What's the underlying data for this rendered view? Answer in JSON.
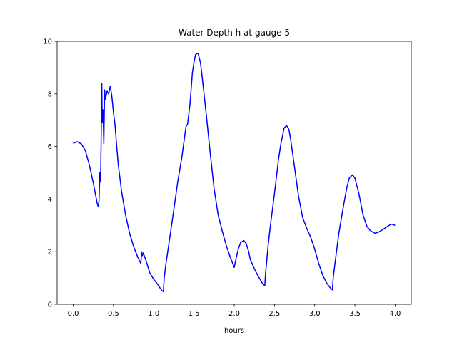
{
  "chart_data": {
    "type": "line",
    "title": "Water Depth h at gauge 5",
    "xlabel": "hours",
    "ylabel": "",
    "xlim": [
      -0.2,
      4.2
    ],
    "ylim": [
      0,
      10
    ],
    "xticks": [
      0.0,
      0.5,
      1.0,
      1.5,
      2.0,
      2.5,
      3.0,
      3.5,
      4.0
    ],
    "xtick_labels": [
      "0.0",
      "0.5",
      "1.0",
      "1.5",
      "2.0",
      "2.5",
      "3.0",
      "3.5",
      "4.0"
    ],
    "yticks": [
      0,
      2,
      4,
      6,
      8,
      10
    ],
    "ytick_labels": [
      "0",
      "2",
      "4",
      "6",
      "8",
      "10"
    ],
    "grid": false,
    "line_color": "#0000ff",
    "series": [
      {
        "points": [
          [
            0.0,
            6.12
          ],
          [
            0.05,
            6.18
          ],
          [
            0.1,
            6.1
          ],
          [
            0.15,
            5.85
          ],
          [
            0.2,
            5.3
          ],
          [
            0.25,
            4.6
          ],
          [
            0.3,
            3.8
          ],
          [
            0.31,
            3.72
          ],
          [
            0.32,
            3.9
          ],
          [
            0.33,
            5.0
          ],
          [
            0.34,
            4.65
          ],
          [
            0.35,
            7.05
          ],
          [
            0.355,
            8.4
          ],
          [
            0.36,
            6.9
          ],
          [
            0.37,
            7.4
          ],
          [
            0.38,
            6.1
          ],
          [
            0.39,
            8.15
          ],
          [
            0.4,
            7.8
          ],
          [
            0.42,
            8.1
          ],
          [
            0.44,
            8.0
          ],
          [
            0.46,
            8.3
          ],
          [
            0.48,
            7.9
          ],
          [
            0.5,
            7.3
          ],
          [
            0.52,
            6.8
          ],
          [
            0.54,
            6.0
          ],
          [
            0.56,
            5.3
          ],
          [
            0.6,
            4.3
          ],
          [
            0.65,
            3.4
          ],
          [
            0.7,
            2.7
          ],
          [
            0.75,
            2.2
          ],
          [
            0.8,
            1.8
          ],
          [
            0.84,
            1.55
          ],
          [
            0.85,
            2.0
          ],
          [
            0.86,
            1.85
          ],
          [
            0.87,
            1.95
          ],
          [
            0.9,
            1.7
          ],
          [
            0.95,
            1.2
          ],
          [
            1.0,
            0.95
          ],
          [
            1.05,
            0.75
          ],
          [
            1.1,
            0.52
          ],
          [
            1.12,
            0.48
          ],
          [
            1.13,
            1.0
          ],
          [
            1.15,
            1.5
          ],
          [
            1.2,
            2.55
          ],
          [
            1.25,
            3.6
          ],
          [
            1.3,
            4.7
          ],
          [
            1.35,
            5.6
          ],
          [
            1.4,
            6.75
          ],
          [
            1.42,
            6.85
          ],
          [
            1.45,
            7.6
          ],
          [
            1.48,
            8.8
          ],
          [
            1.5,
            9.2
          ],
          [
            1.52,
            9.5
          ],
          [
            1.55,
            9.55
          ],
          [
            1.58,
            9.2
          ],
          [
            1.6,
            8.7
          ],
          [
            1.65,
            7.3
          ],
          [
            1.7,
            5.8
          ],
          [
            1.75,
            4.4
          ],
          [
            1.8,
            3.4
          ],
          [
            1.85,
            2.8
          ],
          [
            1.9,
            2.25
          ],
          [
            1.95,
            1.8
          ],
          [
            2.0,
            1.4
          ],
          [
            2.02,
            1.7
          ],
          [
            2.05,
            2.1
          ],
          [
            2.08,
            2.35
          ],
          [
            2.12,
            2.42
          ],
          [
            2.15,
            2.3
          ],
          [
            2.18,
            2.0
          ],
          [
            2.2,
            1.7
          ],
          [
            2.25,
            1.35
          ],
          [
            2.3,
            1.05
          ],
          [
            2.35,
            0.8
          ],
          [
            2.38,
            0.7
          ],
          [
            2.39,
            1.2
          ],
          [
            2.4,
            1.5
          ],
          [
            2.42,
            2.2
          ],
          [
            2.45,
            3.0
          ],
          [
            2.5,
            4.2
          ],
          [
            2.55,
            5.5
          ],
          [
            2.58,
            6.1
          ],
          [
            2.62,
            6.7
          ],
          [
            2.65,
            6.8
          ],
          [
            2.68,
            6.65
          ],
          [
            2.7,
            6.3
          ],
          [
            2.75,
            5.2
          ],
          [
            2.8,
            4.1
          ],
          [
            2.85,
            3.3
          ],
          [
            2.9,
            2.9
          ],
          [
            2.95,
            2.55
          ],
          [
            3.0,
            2.1
          ],
          [
            3.05,
            1.55
          ],
          [
            3.1,
            1.1
          ],
          [
            3.15,
            0.8
          ],
          [
            3.2,
            0.6
          ],
          [
            3.22,
            0.55
          ],
          [
            3.23,
            1.0
          ],
          [
            3.25,
            1.5
          ],
          [
            3.3,
            2.7
          ],
          [
            3.35,
            3.6
          ],
          [
            3.4,
            4.45
          ],
          [
            3.43,
            4.8
          ],
          [
            3.47,
            4.92
          ],
          [
            3.5,
            4.8
          ],
          [
            3.55,
            4.2
          ],
          [
            3.6,
            3.4
          ],
          [
            3.65,
            2.95
          ],
          [
            3.7,
            2.78
          ],
          [
            3.75,
            2.7
          ],
          [
            3.8,
            2.75
          ],
          [
            3.85,
            2.85
          ],
          [
            3.9,
            2.95
          ],
          [
            3.95,
            3.05
          ],
          [
            4.0,
            3.0
          ]
        ]
      }
    ]
  }
}
